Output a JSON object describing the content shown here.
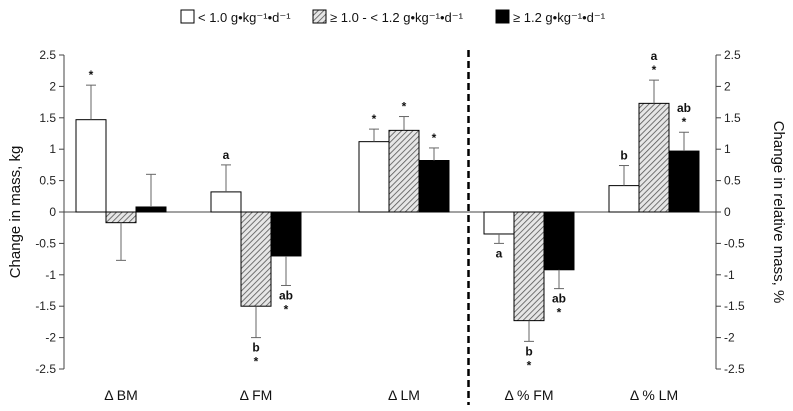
{
  "chart_data": {
    "type": "bar",
    "legend_position": "top",
    "legend": [
      {
        "key": "low",
        "text": "< 1.0 g•kg⁻¹•d⁻¹",
        "fill": "white"
      },
      {
        "key": "mid",
        "text": "≥ 1.0 - < 1.2 g•kg⁻¹•d⁻¹",
        "fill": "hatch"
      },
      {
        "key": "high",
        "text": "≥ 1.2 g•kg⁻¹•d⁻¹",
        "fill": "black"
      }
    ],
    "y_left_label": "Change in mass, kg",
    "y_right_label": "Change in relative mass, %",
    "ylim_left": [
      -2.5,
      2.5
    ],
    "ylim_right": [
      -2.5,
      2.5
    ],
    "yticks_left": [
      "2.5",
      "2",
      "1.5",
      "1",
      "0.5",
      "0",
      "-0.5",
      "-1",
      "-1.5",
      "-2",
      "-2.5"
    ],
    "yticks_right": [
      "2.5",
      "2",
      "1.5",
      "1",
      "0.5",
      "0",
      "-0.5",
      "-1",
      "-1.5",
      "-2",
      "-2.5"
    ],
    "categories": [
      "Δ BM",
      "Δ FM",
      "Δ LM",
      "Δ % FM",
      "Δ % LM"
    ],
    "category_axis": [
      "left",
      "left",
      "left",
      "right",
      "right"
    ],
    "series": [
      {
        "key": "low",
        "values": [
          1.47,
          0.32,
          1.12,
          -0.35,
          0.42
        ],
        "errors": [
          0.55,
          0.43,
          0.2,
          0.15,
          0.32
        ],
        "annotations": [
          [
            "*"
          ],
          [
            "a"
          ],
          [
            "*"
          ],
          [
            "a"
          ],
          [
            "b"
          ]
        ]
      },
      {
        "key": "mid",
        "values": [
          -0.17,
          -1.5,
          1.3,
          -1.73,
          1.73
        ],
        "errors": [
          0.6,
          0.5,
          0.22,
          0.33,
          0.37
        ],
        "annotations": [
          [],
          [
            "b",
            "*"
          ],
          [
            "*"
          ],
          [
            "b",
            "*"
          ],
          [
            "a",
            "*"
          ]
        ]
      },
      {
        "key": "high",
        "values": [
          0.08,
          -0.7,
          0.82,
          -0.92,
          0.97
        ],
        "errors": [
          0.52,
          0.47,
          0.2,
          0.3,
          0.3
        ],
        "annotations": [
          [],
          [
            "ab",
            "*"
          ],
          [
            "*"
          ],
          [
            "ab",
            "*"
          ],
          [
            "ab",
            "*"
          ]
        ]
      }
    ],
    "divider_between": [
      2,
      3
    ],
    "grid": false
  }
}
